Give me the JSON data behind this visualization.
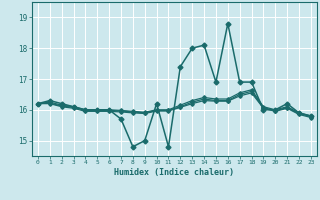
{
  "xlabel": "Humidex (Indice chaleur)",
  "ylabel": "",
  "xlim": [
    -0.5,
    23.5
  ],
  "ylim": [
    14.5,
    19.5
  ],
  "yticks": [
    15,
    16,
    17,
    18,
    19
  ],
  "xticks": [
    0,
    1,
    2,
    3,
    4,
    5,
    6,
    7,
    8,
    9,
    10,
    11,
    12,
    13,
    14,
    15,
    16,
    17,
    18,
    19,
    20,
    21,
    22,
    23
  ],
  "background_color": "#cde8ed",
  "grid_color": "#ffffff",
  "line_color": "#1a6b6b",
  "series": [
    {
      "x": [
        0,
        1,
        2,
        3,
        4,
        5,
        6,
        7,
        8,
        9,
        10,
        11,
        12,
        13,
        14,
        15,
        16,
        17,
        18,
        19,
        20,
        21,
        22,
        23
      ],
      "y": [
        16.2,
        16.3,
        16.2,
        16.1,
        16.0,
        16.0,
        16.0,
        15.7,
        14.8,
        15.0,
        16.2,
        14.8,
        17.4,
        18.0,
        18.1,
        16.9,
        18.8,
        16.9,
        16.9,
        16.0,
        16.0,
        16.2,
        15.9,
        15.8
      ],
      "marker": "D",
      "markersize": 2.5,
      "linewidth": 1.1
    },
    {
      "x": [
        0,
        1,
        2,
        3,
        4,
        5,
        6,
        7,
        8,
        9,
        10,
        11,
        12,
        13,
        14,
        15,
        16,
        17,
        18,
        19,
        20,
        21,
        22,
        23
      ],
      "y": [
        16.2,
        16.25,
        16.15,
        16.1,
        16.0,
        16.0,
        16.0,
        15.98,
        15.95,
        15.92,
        16.0,
        16.0,
        16.15,
        16.3,
        16.4,
        16.35,
        16.35,
        16.55,
        16.65,
        16.1,
        16.0,
        16.1,
        15.9,
        15.8
      ],
      "marker": "D",
      "markersize": 1.8,
      "linewidth": 0.9
    },
    {
      "x": [
        0,
        1,
        2,
        3,
        4,
        5,
        6,
        7,
        8,
        9,
        10,
        11,
        12,
        13,
        14,
        15,
        16,
        17,
        18,
        19,
        20,
        21,
        22,
        23
      ],
      "y": [
        16.2,
        16.22,
        16.12,
        16.08,
        15.98,
        15.98,
        15.98,
        15.96,
        15.93,
        15.9,
        15.98,
        15.98,
        16.1,
        16.25,
        16.35,
        16.3,
        16.3,
        16.5,
        16.6,
        16.07,
        15.97,
        16.07,
        15.88,
        15.78
      ],
      "marker": "D",
      "markersize": 1.8,
      "linewidth": 0.9
    },
    {
      "x": [
        0,
        1,
        2,
        3,
        4,
        5,
        6,
        7,
        8,
        9,
        10,
        11,
        12,
        13,
        14,
        15,
        16,
        17,
        18,
        19,
        20,
        21,
        22,
        23
      ],
      "y": [
        16.2,
        16.2,
        16.1,
        16.05,
        15.95,
        15.95,
        15.95,
        15.93,
        15.9,
        15.88,
        15.96,
        15.96,
        16.08,
        16.2,
        16.3,
        16.28,
        16.28,
        16.45,
        16.55,
        16.05,
        15.95,
        16.05,
        15.85,
        15.75
      ],
      "marker": "D",
      "markersize": 1.8,
      "linewidth": 0.9
    }
  ]
}
